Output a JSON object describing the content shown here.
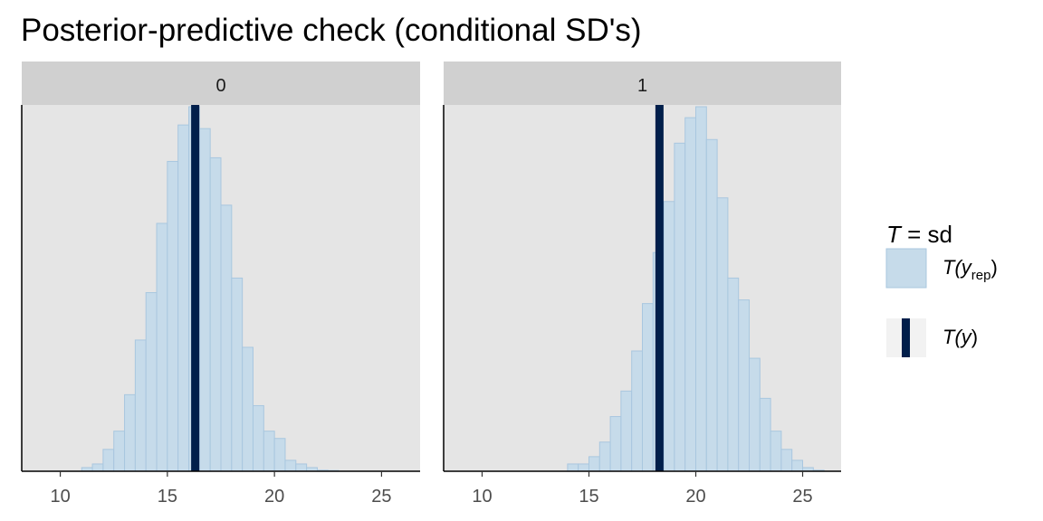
{
  "title": "Posterior-predictive check (conditional SD's)",
  "colors": {
    "panel_bg": "#e5e5e5",
    "strip_bg": "#d0d0d0",
    "bar_fill": "#c6dbea",
    "bar_stroke": "#a9c7df",
    "observed_line": "#011f4b"
  },
  "legend": {
    "title_T": "T",
    "title_rest": " = sd",
    "items": [
      {
        "icon": "rep-swatch-icon",
        "label_T": "T(",
        "label_var": "y",
        "label_sub": "rep",
        "label_end": ")"
      },
      {
        "icon": "observed-line-icon",
        "label_T": "T(",
        "label_var": "y",
        "label_sub": "",
        "label_end": ")"
      }
    ]
  },
  "chart_data": {
    "type": "histogram",
    "title": "Posterior-predictive check (conditional SD's)",
    "xlim": [
      8.2,
      26.8
    ],
    "xticks": [
      10,
      15,
      20,
      25
    ],
    "y_axis_visible": false,
    "legend_position": "right",
    "panels": [
      {
        "strip": "0",
        "observed": 16.3,
        "bin_width": 0.5,
        "bins_start": 9.5,
        "counts": [
          0,
          0,
          0,
          1,
          2,
          6,
          11,
          21,
          36,
          49,
          68,
          85,
          95,
          100,
          94,
          86,
          73,
          53,
          34,
          18,
          11,
          9,
          3,
          2,
          1,
          0.3,
          0.2,
          0,
          0,
          0
        ]
      },
      {
        "strip": "1",
        "observed": 18.3,
        "bin_width": 0.5,
        "bins_start": 9.5,
        "counts": [
          0,
          0,
          0,
          0,
          0,
          0,
          0,
          0,
          0,
          2,
          2,
          4,
          8,
          15,
          22,
          33,
          46,
          60,
          74,
          90,
          97,
          100,
          91,
          75,
          53,
          47,
          31,
          20,
          11,
          6,
          3,
          1,
          0.3,
          0,
          0,
          0
        ]
      }
    ]
  }
}
